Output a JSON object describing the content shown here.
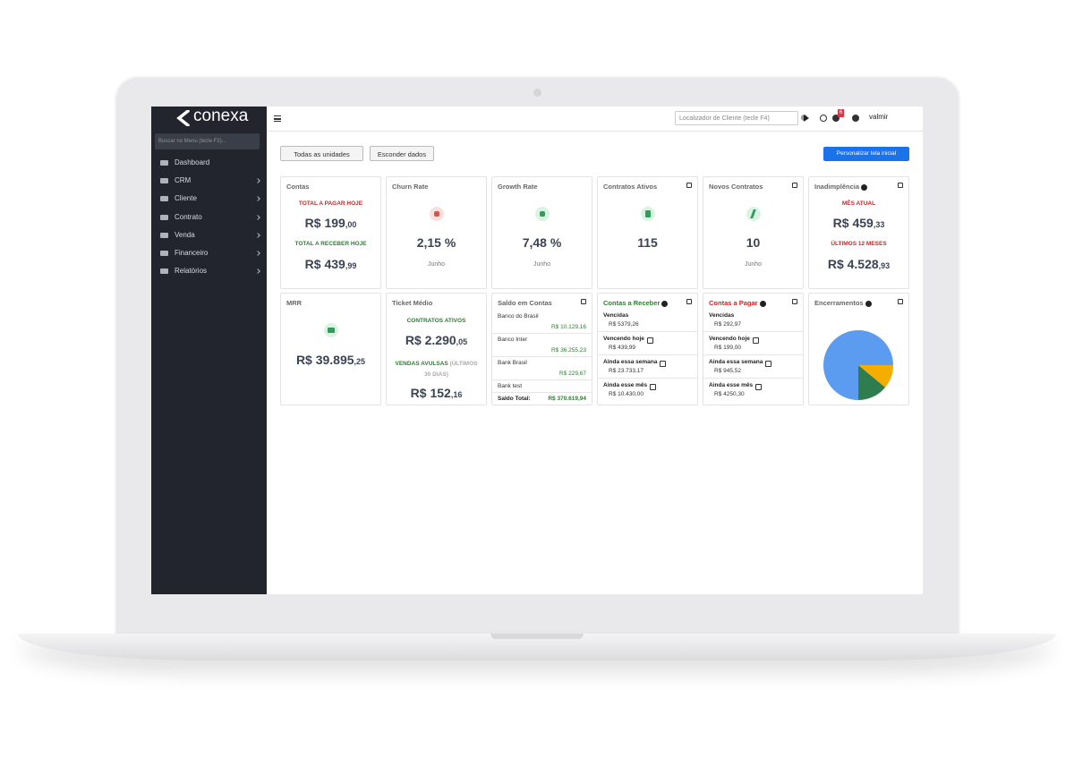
{
  "brand": "conexa",
  "sidebar": {
    "search": "Buscar no Menu (tecle F2)...",
    "menu": [
      "Dashboard",
      "CRM",
      "Cliente",
      "Contrato",
      "Venda",
      "Financeiro",
      "Relatórios"
    ]
  },
  "topbar": {
    "search": "Localizador de Cliente (tecle F4)",
    "badge": "6",
    "user": "valmir"
  },
  "toolbar": {
    "units": "Todas as unidades",
    "hide": "Esconder dados",
    "customize": "Personalizar tela inicial"
  },
  "cards": {
    "contas": {
      "title": "Contas",
      "pay_label": "TOTAL A PAGAR HOJE",
      "pay_main": "R$ 199",
      "pay_cents": ",00",
      "receive_label": "TOTAL A RECEBER HOJE",
      "receive_main": "R$ 439",
      "receive_cents": ",99"
    },
    "churn": {
      "title": "Churn Rate",
      "value": "2,15 %",
      "period": "Junho"
    },
    "growth": {
      "title": "Growth Rate",
      "value": "7,48 %",
      "period": "Junho"
    },
    "active": {
      "title": "Contratos Ativos",
      "value": "115"
    },
    "new": {
      "title": "Novos Contratos",
      "value": "10",
      "period": "Junho"
    },
    "default": {
      "title": "Inadimplência",
      "month_label": "MÊS ATUAL",
      "month_main": "R$ 459",
      "month_cents": ",33",
      "year_label": "ÚLTIMOS 12 MESES",
      "year_main": "R$ 4.528",
      "year_cents": ",93"
    },
    "mrr": {
      "title": "MRR",
      "main": "R$ 39.895",
      "cents": ",25"
    },
    "ticket": {
      "title": "Ticket Médio",
      "active_label": "CONTRATOS ATIVOS",
      "active_main": "R$ 2.290",
      "active_cents": ",05",
      "single_label": "VENDAS AVULSAS",
      "single_note": "(ÚLTIMOS 30 DIAS)",
      "single_main": "R$ 152",
      "single_cents": ",16"
    },
    "balance": {
      "title": "Saldo em Contas",
      "rows": [
        [
          "Banco do Brasil",
          "R$ 10.129,16"
        ],
        [
          "Banco Inter",
          "R$ 36.255,23"
        ],
        [
          "Bank Brasil",
          "R$ 229,67"
        ],
        [
          "Bank test",
          ""
        ]
      ],
      "total_label": "Saldo Total:",
      "total": "R$ 370.619,94"
    },
    "receivable": {
      "title": "Contas a Receber",
      "items": [
        [
          "Vencidas",
          "R$ 5379,26"
        ],
        [
          "Vencendo hoje",
          "R$ 439,99"
        ],
        [
          "Ainda essa semana",
          "R$ 23.733,17"
        ],
        [
          "Ainda esse mês",
          "R$ 10.430,00"
        ]
      ]
    },
    "payable": {
      "title": "Contas a Pagar",
      "items": [
        [
          "Vencidas",
          "R$ 292,97"
        ],
        [
          "Vencendo hoje",
          "R$ 199,00"
        ],
        [
          "Ainda essa semana",
          "R$ 945,52"
        ],
        [
          "Ainda esse mês",
          "R$ 4250,30"
        ]
      ]
    },
    "closures": {
      "title": "Encerramentos",
      "pie": {
        "type": "pie",
        "values": [
          75,
          11,
          14
        ],
        "colors": [
          "#5b9cf0",
          "#f5ad00",
          "#2f7d4f"
        ]
      }
    }
  }
}
